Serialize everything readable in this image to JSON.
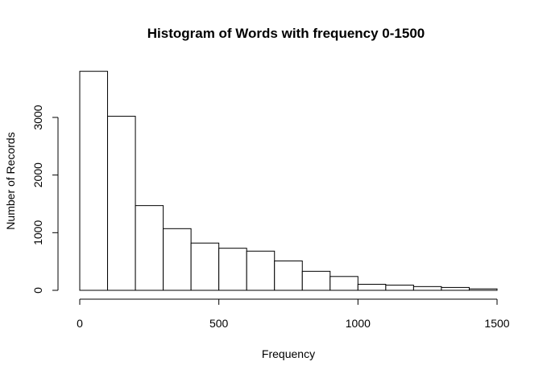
{
  "chart_data": {
    "type": "bar",
    "title": "Histogram of Words with frequency 0-1500",
    "xlabel": "Frequency",
    "ylabel": "Number of Records",
    "bins": [
      {
        "start": 0,
        "end": 100,
        "value": 3800
      },
      {
        "start": 100,
        "end": 200,
        "value": 3020
      },
      {
        "start": 200,
        "end": 300,
        "value": 1470
      },
      {
        "start": 300,
        "end": 400,
        "value": 1070
      },
      {
        "start": 400,
        "end": 500,
        "value": 820
      },
      {
        "start": 500,
        "end": 600,
        "value": 730
      },
      {
        "start": 600,
        "end": 700,
        "value": 680
      },
      {
        "start": 700,
        "end": 800,
        "value": 510
      },
      {
        "start": 800,
        "end": 900,
        "value": 330
      },
      {
        "start": 900,
        "end": 1000,
        "value": 240
      },
      {
        "start": 1000,
        "end": 1100,
        "value": 105
      },
      {
        "start": 1100,
        "end": 1200,
        "value": 90
      },
      {
        "start": 1200,
        "end": 1300,
        "value": 65
      },
      {
        "start": 1300,
        "end": 1400,
        "value": 50
      },
      {
        "start": 1400,
        "end": 1500,
        "value": 25
      }
    ],
    "xlim": [
      0,
      1500
    ],
    "ylim": [
      0,
      3800
    ],
    "x_ticks": [
      0,
      500,
      1000,
      1500
    ],
    "y_ticks": [
      0,
      1000,
      2000,
      3000
    ],
    "grid": false,
    "legend": "none",
    "bar_fill": "#ffffff",
    "bar_stroke": "#000000"
  }
}
